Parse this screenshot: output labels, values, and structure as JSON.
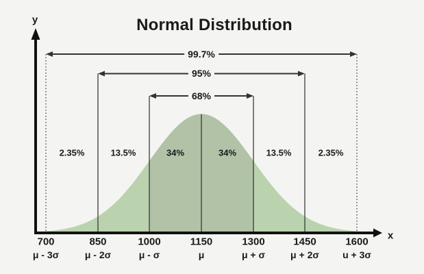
{
  "title": "Normal Distribution",
  "axes": {
    "x": "x",
    "y": "y"
  },
  "labels": {
    "brackets": [
      "99.7%",
      "95%",
      "68%"
    ],
    "regions": [
      "2.35%",
      "13.5%",
      "34%",
      "34%",
      "13.5%",
      "2.35%"
    ],
    "ticks": [
      "700",
      "850",
      "1000",
      "1150",
      "1300",
      "1450",
      "1600"
    ],
    "sigmas": [
      "μ - 3σ",
      "μ - 2σ",
      "μ - σ",
      "μ",
      "μ + σ",
      "μ + 2σ",
      "u + 3σ"
    ]
  },
  "colors": {
    "background": "#f4f4f2",
    "curve_outer": "#bad3ae",
    "curve_inner": "#b1c2a7",
    "axis": "#111111",
    "line": "#333333",
    "text": "#1a1a1a"
  },
  "chart_data": {
    "type": "area",
    "title": "Normal Distribution",
    "distribution": "normal",
    "mean": 1150,
    "std_dev": 150,
    "x_ticks": [
      700,
      850,
      1000,
      1150,
      1300,
      1450,
      1600
    ],
    "x_tick_sigma_labels": [
      "μ - 3σ",
      "μ - 2σ",
      "μ - σ",
      "μ",
      "μ + σ",
      "μ + 2σ",
      "u + 3σ"
    ],
    "interval_coverage": [
      {
        "range": "μ ± σ",
        "percent": 68
      },
      {
        "range": "μ ± 2σ",
        "percent": 95
      },
      {
        "range": "μ ± 3σ",
        "percent": 99.7
      }
    ],
    "region_percentages": [
      2.35,
      13.5,
      34,
      34,
      13.5,
      2.35
    ],
    "shaded_band": "μ ± σ (1000–1300) darker green",
    "xlabel": "x",
    "ylabel": "y",
    "grid": false,
    "legend": false
  }
}
